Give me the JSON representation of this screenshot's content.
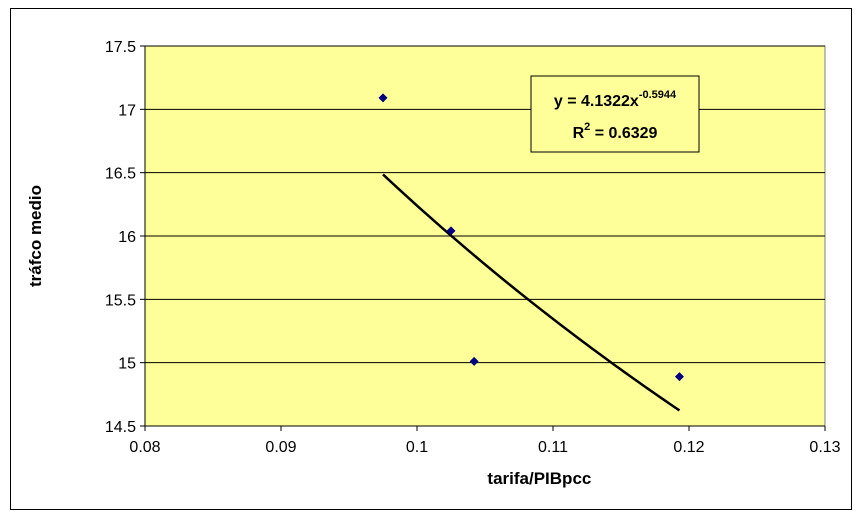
{
  "chart_data": {
    "type": "scatter",
    "title": "",
    "xlabel": "tarifa/PIBpcc",
    "ylabel": "tráfco medio",
    "xlim": [
      0.08,
      0.13
    ],
    "ylim": [
      14.5,
      17.5
    ],
    "x_ticks": [
      0.08,
      0.09,
      0.1,
      0.11,
      0.12,
      0.13
    ],
    "x_tick_labels": [
      "0.08",
      "0.09",
      "0.1",
      "0.11",
      "0.12",
      "0.13"
    ],
    "y_ticks": [
      14.5,
      15,
      15.5,
      16,
      16.5,
      17,
      17.5
    ],
    "y_tick_labels": [
      "14.5",
      "15",
      "15.5",
      "16",
      "16.5",
      "17",
      "17.5"
    ],
    "grid": "horizontal",
    "plot_background": "#FFFF99",
    "series": [
      {
        "points": [
          {
            "x": 0.0975,
            "y": 17.09
          },
          {
            "x": 0.1025,
            "y": 16.04
          },
          {
            "x": 0.1042,
            "y": 15.01
          },
          {
            "x": 0.1193,
            "y": 14.89
          }
        ],
        "marker": "diamond",
        "color": "#000080"
      }
    ],
    "trendline": {
      "type": "power",
      "a": 4.1322,
      "b": -0.5944,
      "x_range": [
        0.0975,
        0.1193
      ],
      "color": "#000000"
    },
    "annotation": {
      "equation_prefix": "y = 4.1322x",
      "equation_exponent": "-0.5944",
      "r2_prefix": "R",
      "r2_exponent": "2",
      "r2_suffix": " = 0.6329"
    }
  }
}
